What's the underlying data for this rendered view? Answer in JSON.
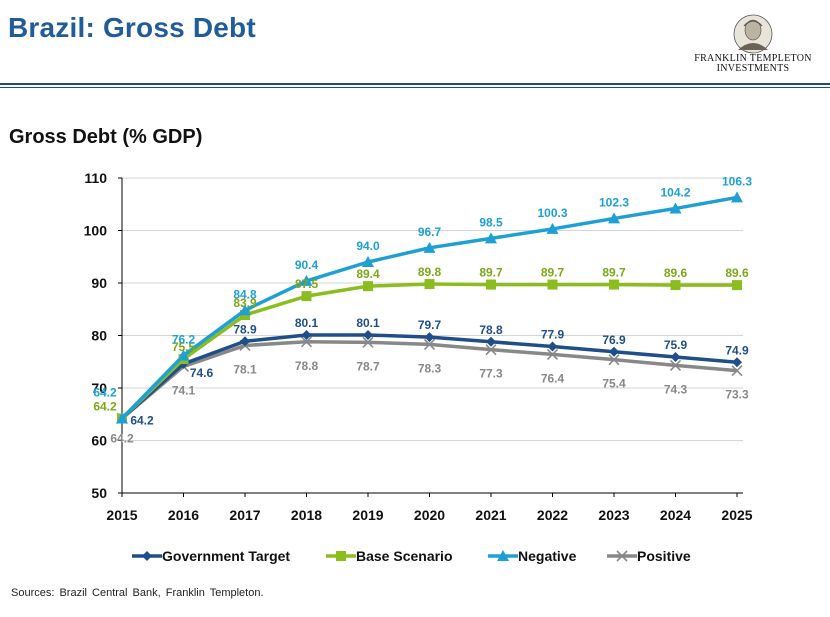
{
  "header": {
    "title": "Brazil: Gross Debt",
    "logo_line1": "FRANKLIN TEMPLETON",
    "logo_line2": "INVESTMENTS"
  },
  "chart_subtitle": "Gross Debt (% GDP)",
  "source": "Sources: Brazil Central Bank, Franklin Templeton.",
  "colors": {
    "title": "#1f5c99",
    "government_target": "#1f4e89",
    "base_scenario": "#8cbd1e",
    "negative": "#1ea0d6",
    "positive": "#888888"
  },
  "chart_data": {
    "type": "line",
    "title": "Gross Debt (% GDP)",
    "xlabel": "",
    "ylabel": "",
    "x": [
      "2015",
      "2016",
      "2017",
      "2018",
      "2019",
      "2020",
      "2021",
      "2022",
      "2023",
      "2024",
      "2025"
    ],
    "ylim": [
      50,
      110
    ],
    "yticks": [
      50,
      60,
      70,
      80,
      90,
      100,
      110
    ],
    "grid": true,
    "legend_position": "bottom",
    "series": [
      {
        "name": "Government Target",
        "color": "#1f4e89",
        "marker": "diamond",
        "label_color": "#1f4e89",
        "values": [
          64.2,
          74.6,
          78.9,
          80.1,
          80.1,
          79.7,
          78.8,
          77.9,
          76.9,
          75.9,
          74.9
        ]
      },
      {
        "name": "Base Scenario",
        "color": "#8cbd1e",
        "marker": "square",
        "label_color": "#7aa817",
        "values": [
          64.2,
          75.5,
          83.9,
          87.5,
          89.4,
          89.8,
          89.7,
          89.7,
          89.7,
          89.6,
          89.6
        ]
      },
      {
        "name": "Negative",
        "color": "#1ea0d6",
        "marker": "triangle",
        "label_color": "#1ea0d6",
        "values": [
          64.2,
          76.2,
          84.8,
          90.4,
          94.0,
          96.7,
          98.5,
          100.3,
          102.3,
          104.2,
          106.3
        ]
      },
      {
        "name": "Positive",
        "color": "#888888",
        "marker": "x",
        "label_color": "#888888",
        "values": [
          64.2,
          74.1,
          78.1,
          78.8,
          78.7,
          78.3,
          77.3,
          76.4,
          75.4,
          74.3,
          73.3
        ]
      }
    ],
    "data_labels": [
      [
        "64.2",
        "74.6",
        "78.9",
        "80.1",
        "80.1",
        "79.7",
        "78.8",
        "77.9",
        "76.9",
        "75.9",
        "74.9"
      ],
      [
        "64.2",
        "75.5",
        "83.9",
        "87.5",
        "89.4",
        "89.8",
        "89.7",
        "89.7",
        "89.7",
        "89.6",
        "89.6"
      ],
      [
        "64.2",
        "76.2",
        "84.8",
        "90.4",
        "94.0",
        "96.7",
        "98.5",
        "100.3",
        "102.3",
        "104.2",
        "106.3"
      ],
      [
        "64.2",
        "74.1",
        "78.1",
        "78.8",
        "78.7",
        "78.3",
        "77.3",
        "76.4",
        "75.4",
        "74.3",
        "73.3"
      ]
    ]
  }
}
